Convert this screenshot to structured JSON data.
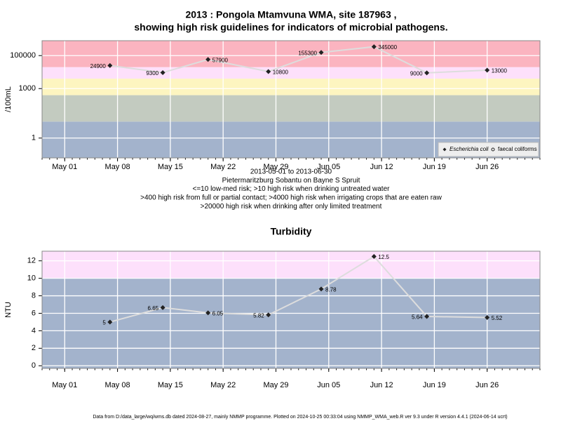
{
  "chart_data": [
    {
      "type": "line",
      "title": [
        "2013 : Pongola Mtamvuna WMA, site 187963 ,",
        "showing high risk guidelines for indicators of microbial pathogens."
      ],
      "notes": [
        "2013-05-01 to 2013-06-30",
        "Pietermaritzburg Sobantu on Bayne S Spruit",
        "<=10 low-med risk; >10 high risk when drinking untreated water",
        ">400 high risk from full or partial contact; >4000 high risk when irrigating crops that are eaten raw",
        ">20000 high risk when drinking after only limited treatment"
      ],
      "ylabel": "/100mL",
      "log_y": true,
      "x": [
        "2013-05-07",
        "2013-05-14",
        "2013-05-20",
        "2013-05-28",
        "2013-06-04",
        "2013-06-11",
        "2013-06-18",
        "2013-06-26"
      ],
      "series": [
        {
          "name": "Escherichia coli",
          "color": "#dddddd",
          "marker": "diamond",
          "values": [
            24900,
            9300,
            57900,
            10800,
            155300,
            345000,
            9000,
            13000
          ]
        },
        {
          "name": "faecal coliforms",
          "color": "#dddddd",
          "marker": "circle",
          "values": [
            null,
            null,
            null,
            null,
            null,
            null,
            null,
            null
          ]
        }
      ],
      "xlim": [
        "2013-04-28",
        "2013-07-03"
      ],
      "xticks": [
        {
          "value": "2013-05-01",
          "label": "May 01"
        },
        {
          "value": "2013-05-08",
          "label": "May 08"
        },
        {
          "value": "2013-05-15",
          "label": "May 15"
        },
        {
          "value": "2013-05-22",
          "label": "May 22"
        },
        {
          "value": "2013-05-29",
          "label": "May 29"
        },
        {
          "value": "2013-06-05",
          "label": "Jun 05"
        },
        {
          "value": "2013-06-12",
          "label": "Jun 12"
        },
        {
          "value": "2013-06-19",
          "label": "Jun 19"
        },
        {
          "value": "2013-06-26",
          "label": "Jun 26"
        }
      ],
      "ylim": [
        0.063,
        800000
      ],
      "yticks": [
        1,
        1000,
        100000
      ],
      "bands": [
        {
          "upto": 10,
          "color": "#a3b3cc"
        },
        {
          "upto": 400,
          "color": "#c3cbc0"
        },
        {
          "upto": 4000,
          "color": "#fdf5c0"
        },
        {
          "upto": 20000,
          "color": "#fde0fb"
        },
        {
          "color": "#fbb4c0"
        }
      ],
      "grid": true,
      "legend": "bottom-right"
    },
    {
      "type": "line",
      "title": "Turbidity",
      "ylabel": "NTU",
      "log_y": false,
      "x": [
        "2013-05-07",
        "2013-05-14",
        "2013-05-20",
        "2013-05-28",
        "2013-06-04",
        "2013-06-11",
        "2013-06-18",
        "2013-06-26"
      ],
      "series": [
        {
          "color": "#dddddd",
          "marker": "diamond",
          "values": [
            5,
            6.65,
            6.05,
            5.82,
            8.78,
            12.5,
            5.64,
            5.52
          ]
        }
      ],
      "xlim": [
        "2013-04-28",
        "2013-07-03"
      ],
      "xticks": [
        {
          "value": "2013-05-01",
          "label": "May 01"
        },
        {
          "value": "2013-05-08",
          "label": "May 08"
        },
        {
          "value": "2013-05-15",
          "label": "May 15"
        },
        {
          "value": "2013-05-22",
          "label": "May 22"
        },
        {
          "value": "2013-05-29",
          "label": "May 29"
        },
        {
          "value": "2013-06-05",
          "label": "Jun 05"
        },
        {
          "value": "2013-06-12",
          "label": "Jun 12"
        },
        {
          "value": "2013-06-19",
          "label": "Jun 19"
        },
        {
          "value": "2013-06-26",
          "label": "Jun 26"
        }
      ],
      "ylim": [
        -0.3,
        13.1
      ],
      "yticks": [
        0,
        2,
        4,
        6,
        8,
        10,
        12
      ],
      "bands": [
        {
          "upto": 10,
          "color": "#a3b3cc"
        },
        {
          "color": "#fde0fb"
        }
      ],
      "grid": true
    }
  ],
  "footer": "Data from D:/data_large/wq/wms.db dated 2024-08-27, mainly NMMP programme. Plotted on 2024-10-25 00:33:04 using NMMP_WMA_web.R ver 9.3 under R version 4.4.1 (2024-06-14 ucrt)"
}
